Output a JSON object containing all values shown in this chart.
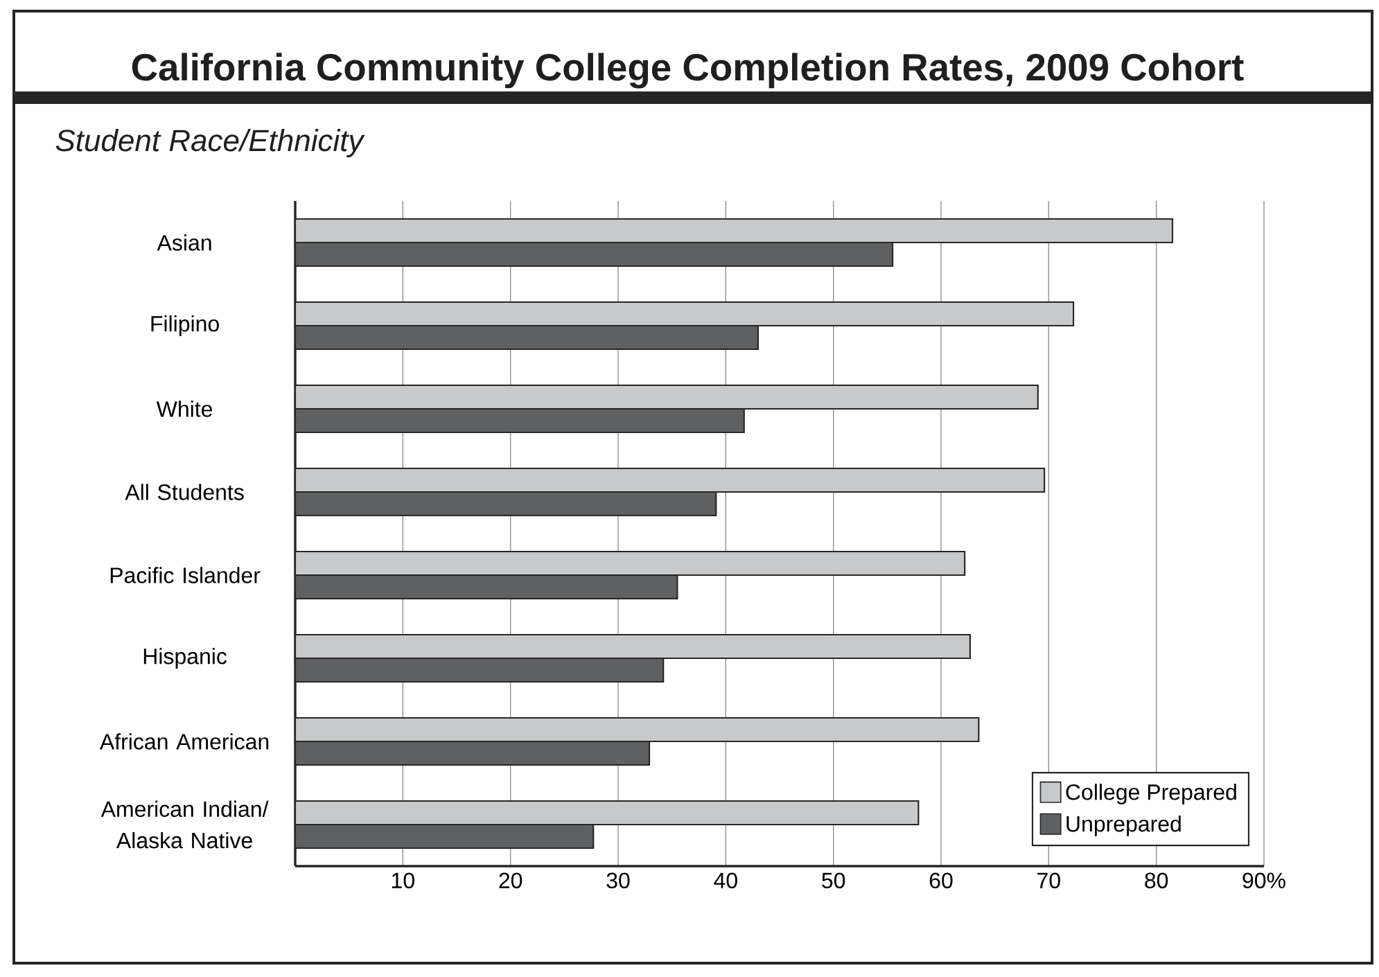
{
  "chart_data": {
    "type": "bar",
    "orientation": "horizontal",
    "title": "California Community College Completion Rates, 2009 Cohort",
    "subtitle": "Student Race/Ethnicity",
    "categories": [
      "Asian",
      "Filipino",
      "White",
      "All Students",
      "Pacific Islander",
      "Hispanic",
      "African American",
      "American Indian/ Alaska Native"
    ],
    "series": [
      {
        "name": "College Prepared",
        "color": "#c8c9cb",
        "values": [
          81.5,
          72.3,
          69.0,
          69.6,
          62.2,
          62.7,
          63.5,
          57.9
        ]
      },
      {
        "name": "Unprepared",
        "color": "#5f6062",
        "values": [
          55.5,
          43.0,
          41.7,
          39.1,
          35.5,
          34.2,
          32.9,
          27.7
        ]
      }
    ],
    "xlim": [
      0,
      90
    ],
    "xticks": [
      10,
      20,
      30,
      40,
      50,
      60,
      70,
      80,
      {
        "value": 90,
        "label": "90%"
      }
    ],
    "grid": "x",
    "legend": "bottom right"
  }
}
